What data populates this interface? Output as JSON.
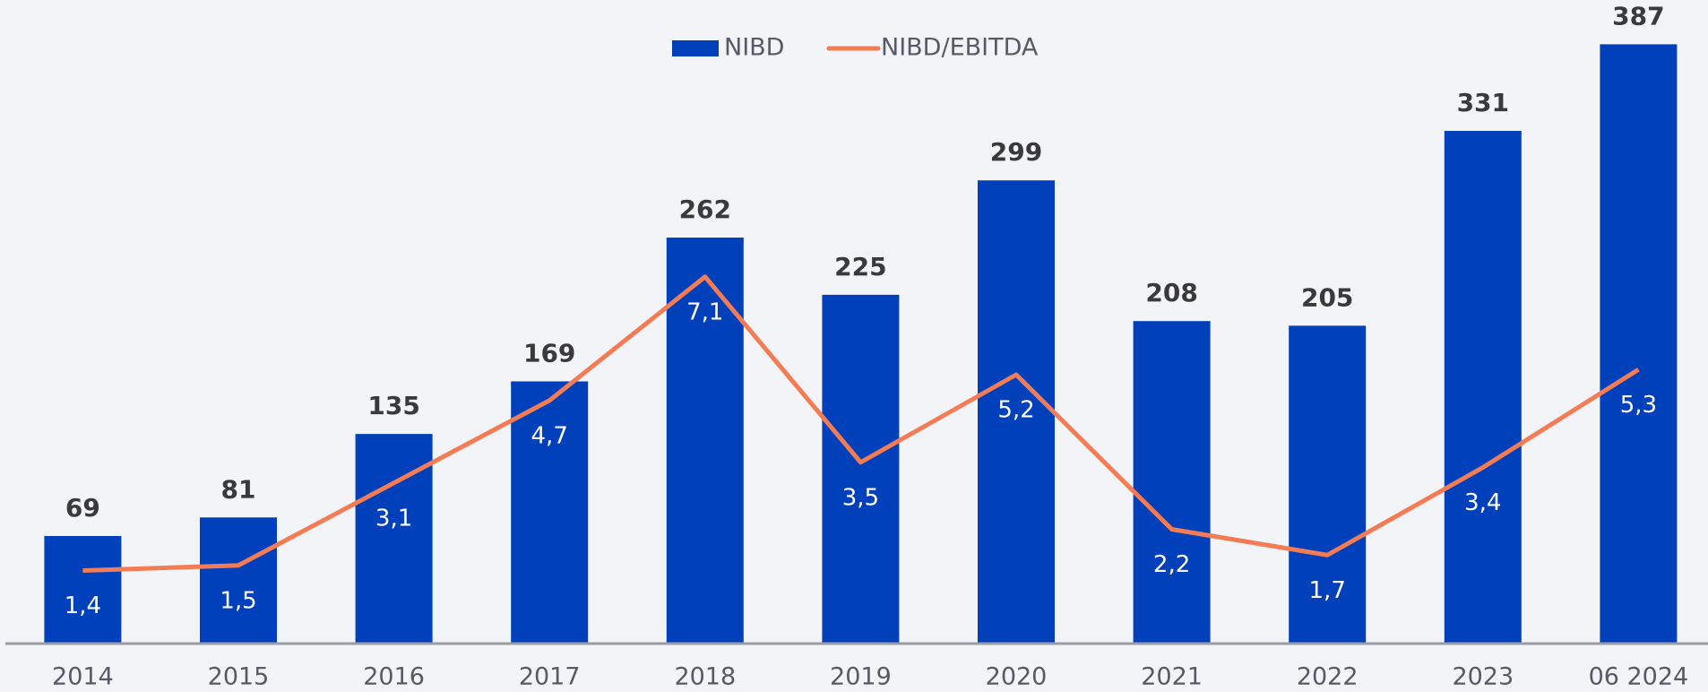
{
  "chart_data": {
    "type": "bar",
    "categories": [
      "2014",
      "2015",
      "2016",
      "2017",
      "2018",
      "2019",
      "2020",
      "2021",
      "2022",
      "2023",
      "06 2024"
    ],
    "series": [
      {
        "name": "NIBD",
        "color": "#0040bb",
        "values": [
          69,
          81,
          135,
          169,
          262,
          225,
          299,
          208,
          205,
          331,
          387
        ]
      },
      {
        "name": "NIBD/EBITDA",
        "color": "#f47c55",
        "axis": "y2",
        "type": "line",
        "values": [
          1.4,
          1.5,
          3.1,
          4.7,
          7.1,
          3.5,
          5.2,
          2.2,
          1.7,
          3.4,
          5.3
        ],
        "value_labels": [
          "1,4",
          "1,5",
          "3,1",
          "4,7",
          "7,1",
          "3,5",
          "5,2",
          "2,2",
          "1,7",
          "3,4",
          "5,3"
        ]
      }
    ],
    "ylim": [
      0,
      400
    ],
    "y2lim": [
      0,
      12
    ],
    "grid": false,
    "legend": "top"
  }
}
